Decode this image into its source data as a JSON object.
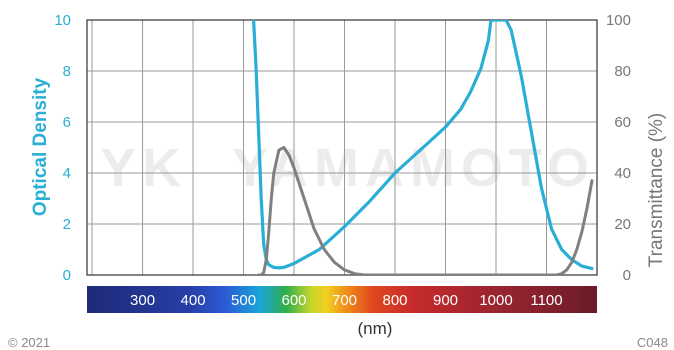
{
  "chart_data": {
    "type": "line",
    "xlabel": "(nm)",
    "ylabel_left": "Optical Density",
    "ylabel_right": "Transmittance (%)",
    "xlim": [
      190,
      1200
    ],
    "ylim_left": [
      0,
      10
    ],
    "ylim_right": [
      0,
      100
    ],
    "left_ticks": [
      "0",
      "2",
      "4",
      "6",
      "8",
      "10"
    ],
    "right_ticks": [
      "0",
      "20",
      "40",
      "60",
      "80",
      "100"
    ],
    "wavelength_ticks": [
      "300",
      "400",
      "500",
      "600",
      "700",
      "800",
      "900",
      "1000",
      "1100"
    ],
    "grid": true,
    "series": [
      {
        "axis": "left",
        "color": "#2aaed6",
        "x": [
          520,
          525,
          530,
          535,
          540,
          545,
          550,
          560,
          570,
          580,
          600,
          650,
          700,
          750,
          800,
          850,
          900,
          930,
          950,
          970,
          985,
          990,
          1000,
          1010,
          1020,
          1030,
          1050,
          1070,
          1090,
          1110,
          1130,
          1150,
          1170,
          1190
        ],
        "y": [
          10,
          8,
          5.5,
          3,
          1.2,
          0.6,
          0.4,
          0.3,
          0.28,
          0.3,
          0.45,
          1.0,
          1.9,
          2.9,
          4.0,
          4.9,
          5.8,
          6.5,
          7.2,
          8.1,
          9.2,
          10,
          10,
          10,
          10,
          9.6,
          7.8,
          5.6,
          3.4,
          1.8,
          1.0,
          0.6,
          0.35,
          0.25
        ]
      },
      {
        "axis": "right",
        "color": "#808080",
        "x": [
          530,
          535,
          540,
          545,
          550,
          555,
          560,
          570,
          580,
          590,
          600,
          620,
          640,
          660,
          680,
          700,
          720,
          740,
          770,
          1100,
          1120,
          1130,
          1140,
          1150,
          1160,
          1170,
          1180,
          1190
        ],
        "y": [
          0,
          0,
          1,
          6,
          17,
          30,
          40,
          49,
          50,
          47,
          42,
          30,
          18,
          10,
          5,
          2,
          0.5,
          0,
          0,
          0,
          0,
          0.5,
          2,
          5,
          10,
          17,
          26,
          37
        ]
      }
    ]
  },
  "watermark": "YAMAMOTO",
  "watermark_logo": "YK",
  "copyright": "© 2021",
  "code": "C048"
}
